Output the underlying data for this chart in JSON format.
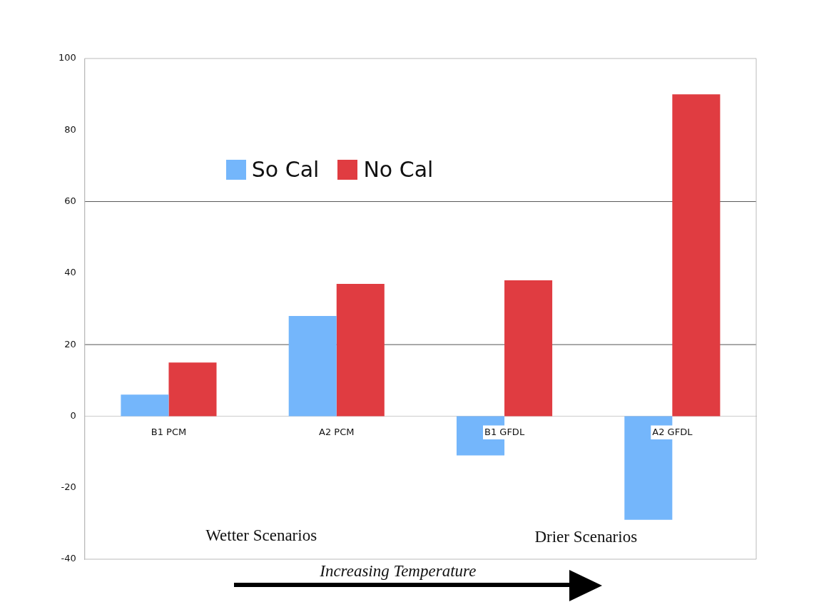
{
  "chart_data": {
    "type": "bar",
    "categories": [
      "B1 PCM",
      "A2 PCM",
      "B1 GFDL",
      "A2 GFDL"
    ],
    "series": [
      {
        "name": "So Cal",
        "color": "#74b6fb",
        "values": [
          6,
          28,
          -11,
          -29
        ]
      },
      {
        "name": "No Cal",
        "color": "#e03c41",
        "values": [
          15,
          37,
          38,
          90
        ]
      }
    ],
    "ylim": [
      -40,
      100
    ],
    "yticks": [
      -40,
      -20,
      0,
      20,
      40,
      60,
      80,
      100
    ],
    "ref_lines": [
      {
        "axis": "y",
        "value": 20,
        "color": "#555555"
      },
      {
        "axis": "y",
        "value": 60,
        "color": "#555555"
      }
    ],
    "legend": "top left",
    "annotations": [
      "Wetter Scenarios",
      "Drier Scenarios",
      "Increasing Temperature"
    ]
  }
}
